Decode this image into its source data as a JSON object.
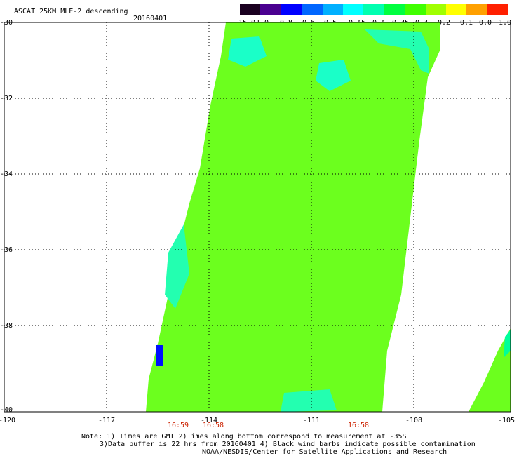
{
  "header": {
    "title": "ASCAT 25KM MLE-2 descending",
    "date": "20160401"
  },
  "colorbar": {
    "labels": [
      "-15.0",
      "-1.0",
      "-0.8",
      "-0.6",
      "-0.5",
      "-0.45",
      "-0.4",
      "-0.35",
      "-0.3",
      "-0.2",
      "-0.1",
      "0.0",
      "1.0"
    ],
    "colors": [
      "#1a0020",
      "#4a0090",
      "#0000ff",
      "#0066ff",
      "#00b0ff",
      "#00ffff",
      "#00ffb0",
      "#00ff40",
      "#40ff00",
      "#a0ff00",
      "#ffff00",
      "#ffa000",
      "#ff2000"
    ]
  },
  "axes": {
    "y_labels": [
      "-30",
      "-32",
      "-34",
      "-36",
      "-38",
      "-40"
    ],
    "x_labels": [
      "-120",
      "-117",
      "-114",
      "-111",
      "-108",
      "-105"
    ]
  },
  "time_labels": [
    "16:59",
    "16:58",
    "16:58"
  ],
  "notes": [
    "Note: 1) Times are GMT 2)Times along bottom correspond to measurement at -35S",
    "3)Data buffer is 22 hrs from 20160401 4) Black wind barbs indicate possible contamination",
    "NOAA/NESDIS/Center for Satellite Applications and Research"
  ],
  "swath": {
    "fill": "#6cff1e",
    "edge": "#00ff9a",
    "patches": [
      {
        "color": "#1affc8"
      },
      {
        "color": "#1affc8"
      },
      {
        "color": "#23ffb0"
      },
      {
        "color": "#23ffb0"
      },
      {
        "color": "#0010ff"
      }
    ]
  }
}
